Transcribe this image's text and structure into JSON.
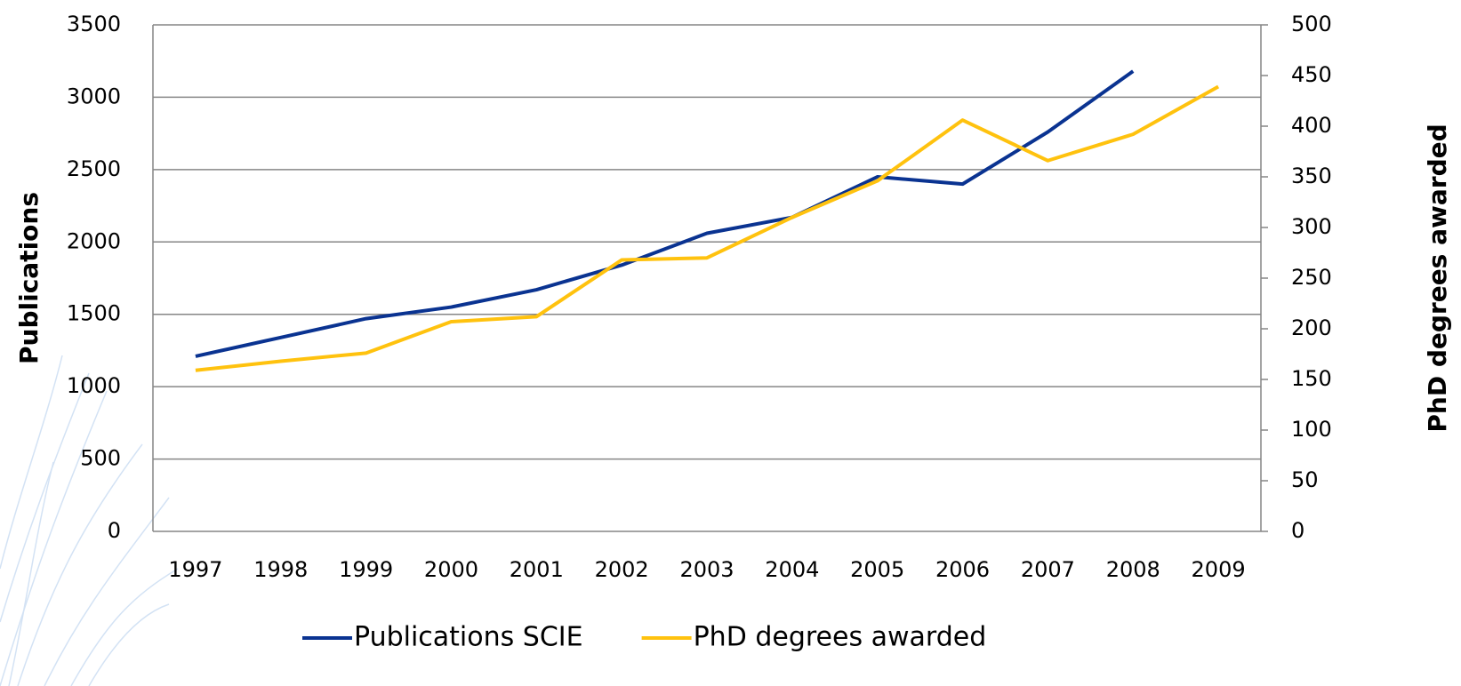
{
  "chart_data": {
    "type": "line",
    "categories": [
      "1997",
      "1998",
      "1999",
      "2000",
      "2001",
      "2002",
      "2003",
      "2004",
      "2005",
      "2006",
      "2007",
      "2008",
      "2009"
    ],
    "y_label": "Publications",
    "y2_label": "PhD degrees awarded",
    "ylim": [
      0,
      3500
    ],
    "yticks": [
      0,
      500,
      1000,
      1500,
      2000,
      2500,
      3000,
      3500
    ],
    "y2lim": [
      0,
      500
    ],
    "y2ticks": [
      0,
      50,
      100,
      150,
      200,
      250,
      300,
      350,
      400,
      450,
      500
    ],
    "grid": true,
    "legend": "bottom",
    "series": [
      {
        "name": "Publications SCIE",
        "color": "#0a3391",
        "values": [
          1210,
          1340,
          1470,
          1550,
          1670,
          1840,
          2060,
          2170,
          2450,
          2400,
          2760,
          3180,
          null
        ]
      },
      {
        "name": "PhD degrees awarded",
        "color": "#ffc20e",
        "axis": "y2",
        "values": [
          159,
          168,
          176,
          207,
          212,
          268,
          270,
          310,
          346,
          406,
          366,
          392,
          439
        ]
      }
    ]
  }
}
